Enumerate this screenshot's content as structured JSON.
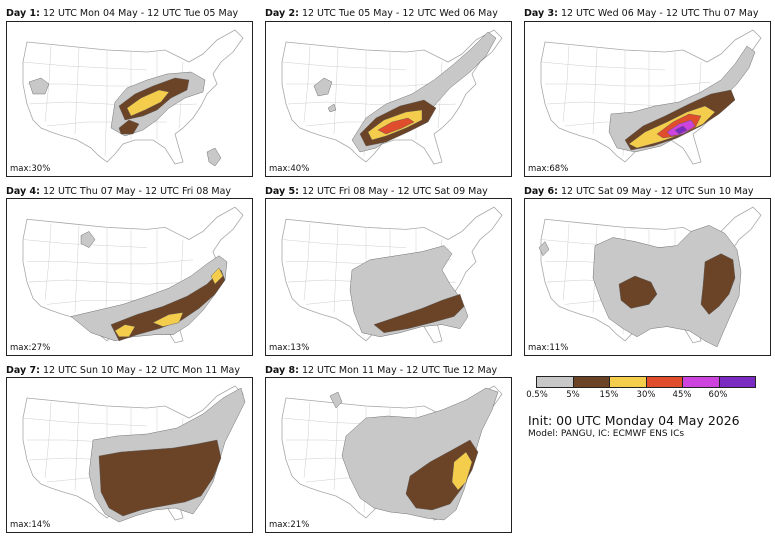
{
  "colors": {
    "p05": "#c8c8c8",
    "p5": "#6b4428",
    "p15": "#f5cd4c",
    "p30": "#e04d2d",
    "p45": "#cc44dd",
    "p60": "#7a2bc2",
    "border": "#a8a8a8"
  },
  "panels": [
    {
      "day": "Day 1:",
      "period": "12 UTC Mon 04 May - 12 UTC Tue 05 May",
      "max": "max:30%"
    },
    {
      "day": "Day 2:",
      "period": "12 UTC Tue 05 May - 12 UTC Wed 06 May",
      "max": "max:40%"
    },
    {
      "day": "Day 3:",
      "period": "12 UTC Wed 06 May - 12 UTC Thu 07 May",
      "max": "max:68%"
    },
    {
      "day": "Day 4:",
      "period": "12 UTC Thu 07 May - 12 UTC Fri 08 May",
      "max": "max:27%"
    },
    {
      "day": "Day 5:",
      "period": "12 UTC Fri 08 May - 12 UTC Sat 09 May",
      "max": "max:13%"
    },
    {
      "day": "Day 6:",
      "period": "12 UTC Sat 09 May - 12 UTC Sun 10 May",
      "max": "max:11%"
    },
    {
      "day": "Day 7:",
      "period": "12 UTC Sun 10 May - 12 UTC Mon 11 May",
      "max": "max:14%"
    },
    {
      "day": "Day 8:",
      "period": "12 UTC Mon 11 May - 12 UTC Tue 12 May",
      "max": "max:21%"
    }
  ],
  "legend": {
    "ticks": [
      "0.5%",
      "5%",
      "15%",
      "30%",
      "45%",
      "60%"
    ]
  },
  "info": {
    "init": "Init: 00 UTC Monday 04 May 2026",
    "model": "Model: PANGU, IC: ECMWF ENS ICs"
  }
}
